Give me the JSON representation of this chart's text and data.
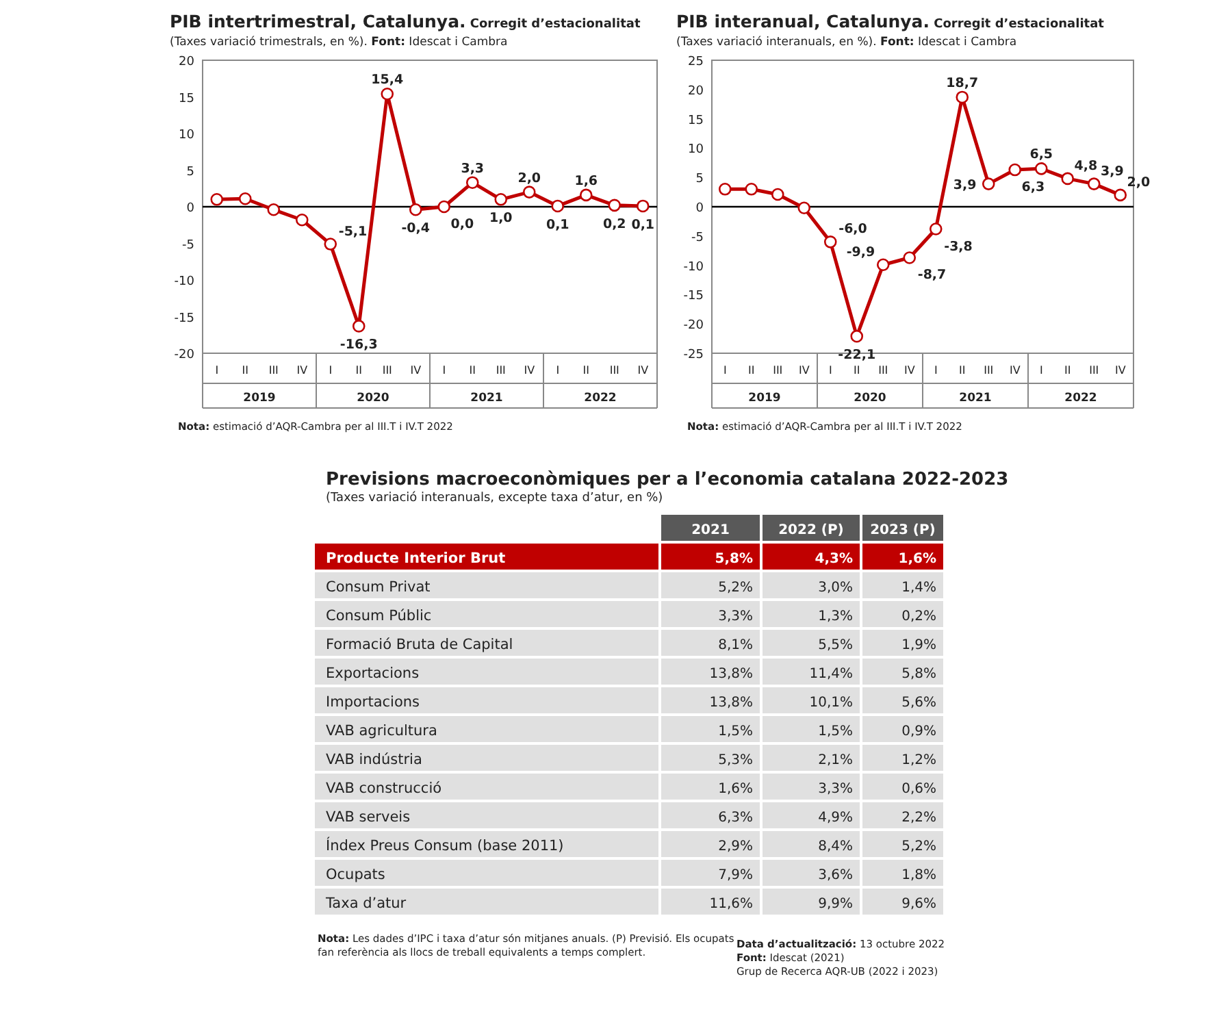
{
  "chart_data": [
    {
      "type": "line",
      "title": "PIB intertrimestral, Catalunya. Corregit d’estacionalitat",
      "subtitle": "(Taxes variació trimestrals, en %). Font: Idescat i Cambra",
      "categories": [
        "I",
        "II",
        "III",
        "IV",
        "I",
        "II",
        "III",
        "IV",
        "I",
        "II",
        "III",
        "IV",
        "I",
        "II",
        "III",
        "IV"
      ],
      "series": [
        {
          "color": "#c00000",
          "values": [
            1.0,
            1.1,
            -0.4,
            -1.8,
            -5.1,
            -16.3,
            15.4,
            -0.4,
            0.0,
            3.3,
            1.0,
            2.0,
            0.1,
            1.6,
            0.2,
            0.1
          ],
          "value_labels": [
            null,
            null,
            null,
            null,
            "-5,1",
            "-16,3",
            "15,4",
            "-0,4",
            "0,0",
            "3,3",
            "1,0",
            "2,0",
            "0,1",
            "1,6",
            "0,2",
            "0,1"
          ]
        }
      ],
      "ylim": [
        -20,
        20
      ],
      "yticks": [
        -20,
        -15,
        -10,
        -5,
        0,
        5,
        10,
        15,
        20
      ],
      "marker": "circle",
      "line_style": "solid",
      "grid": false,
      "ref_lines": [
        {
          "axis": "y",
          "value": 0
        }
      ],
      "annotations": [
        "2019",
        "2020",
        "2021",
        "2022",
        "Nota: estimació d’AQR-Cambra per al III.T i IV.T 2022"
      ]
    },
    {
      "type": "line",
      "title": "PIB interanual, Catalunya. Corregit d’estacionalitat",
      "subtitle": "(Taxes variació interanuals, en %). Font: Idescat i Cambra",
      "categories": [
        "I",
        "II",
        "III",
        "IV",
        "I",
        "II",
        "III",
        "IV",
        "I",
        "II",
        "III",
        "IV",
        "I",
        "II",
        "III",
        "IV"
      ],
      "series": [
        {
          "color": "#c00000",
          "values": [
            3.0,
            3.0,
            2.1,
            -0.2,
            -6.0,
            -22.1,
            -9.9,
            -8.7,
            -3.8,
            18.7,
            3.9,
            6.3,
            6.5,
            4.8,
            3.9,
            2.0
          ],
          "value_labels": [
            null,
            null,
            null,
            null,
            "-6,0",
            "-22,1",
            "-9,9",
            "-8,7",
            "-3,8",
            "18,7",
            "3,9",
            "6,3",
            "6,5",
            "4,8",
            "3,9",
            "2,0"
          ]
        }
      ],
      "ylim": [
        -25,
        25
      ],
      "yticks": [
        -25,
        -20,
        -15,
        -10,
        -5,
        0,
        5,
        10,
        15,
        20,
        25
      ],
      "marker": "circle",
      "line_style": "solid",
      "grid": false,
      "ref_lines": [
        {
          "axis": "y",
          "value": 0
        }
      ],
      "annotations": [
        "2019",
        "2020",
        "2021",
        "2022",
        "Nota: estimació d’AQR-Cambra per al III.T i IV.T 2022"
      ]
    },
    {
      "type": "other",
      "title": "Previsions macroeconòmiques per a l’economia catalana 2022-2023",
      "subtitle": "(Taxes variació interanuals, excepte taxa d’atur, en %)",
      "categories": [
        "2021",
        "2022 (P)",
        "2023 (P)"
      ],
      "y_categories": [
        "Producte Interior Brut",
        "Consum Privat",
        "Consum Públic",
        "Formació Bruta de Capital",
        "Exportacions",
        "Importacions",
        "VAB agricultura",
        "VAB indústria",
        "VAB construcció",
        "VAB serveis",
        "Índex Preus Consum (base 2011)",
        "Ocupats",
        "Taxa d’atur"
      ],
      "cell_labels": [
        [
          "5,8%",
          "4,3%",
          "1,6%"
        ],
        [
          "5,2%",
          "3,0%",
          "1,4%"
        ],
        [
          "3,3%",
          "1,3%",
          "0,2%"
        ],
        [
          "8,1%",
          "5,5%",
          "1,9%"
        ],
        [
          "13,8%",
          "11,4%",
          "5,8%"
        ],
        [
          "13,8%",
          "10,1%",
          "5,6%"
        ],
        [
          "1,5%",
          "1,5%",
          "0,9%"
        ],
        [
          "5,3%",
          "2,1%",
          "1,2%"
        ],
        [
          "1,6%",
          "3,3%",
          "0,6%"
        ],
        [
          "6,3%",
          "4,9%",
          "2,2%"
        ],
        [
          "2,9%",
          "8,4%",
          "5,2%"
        ],
        [
          "7,9%",
          "3,6%",
          "1,8%"
        ],
        [
          "11,6%",
          "9,9%",
          "9,6%"
        ]
      ],
      "annotations": [
        "Nota: Les dades d’IPC i taxa d’atur són mitjanes anuals. (P) Previsió. Els ocupats fan referència als llocs de treball equivalents a temps complert.",
        "Data d’actualització: 13 octubre 2022",
        "Font: Idescat (2021)",
        "Grup de Recerca AQR-UB (2022 i 2023)"
      ]
    }
  ]
}
